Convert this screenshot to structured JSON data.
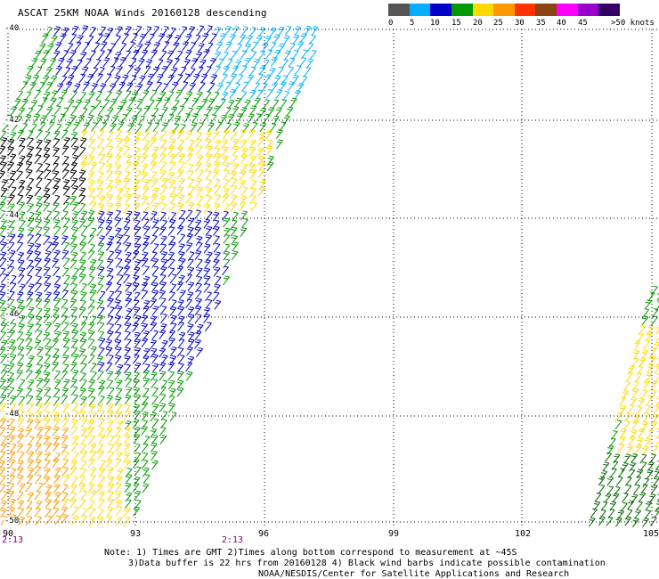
{
  "title": "ASCAT 25KM NOAA Winds 20160128 descending",
  "colorbar": {
    "colors": [
      "#555555",
      "#00b0ff",
      "#0000c8",
      "#009900",
      "#ffd800",
      "#ff9900",
      "#ff3300",
      "#8b4513",
      "#ff00ff",
      "#9900cc",
      "#330066"
    ],
    "labels": [
      "0",
      "5",
      "10",
      "15",
      "20",
      "25",
      "30",
      "35",
      "40",
      "45",
      ">50 knots"
    ]
  },
  "axes": {
    "longitude_ticks": [
      "90",
      "93",
      "96",
      "99",
      "102",
      "105"
    ],
    "latitude_ticks": [
      "-40",
      "-42",
      "-44",
      "-46",
      "-48",
      "-50"
    ]
  },
  "times": [
    "2:13",
    "2:13"
  ],
  "notes": [
    "Note: 1) Times are GMT 2)Times along bottom correspond to measurement at ~45S",
    "3)Data buffer is 22 hrs from 20160128 4) Black wind barbs indicate possible contamination",
    "NOAA/NESDIS/Center for Satellite Applications and Research"
  ]
}
